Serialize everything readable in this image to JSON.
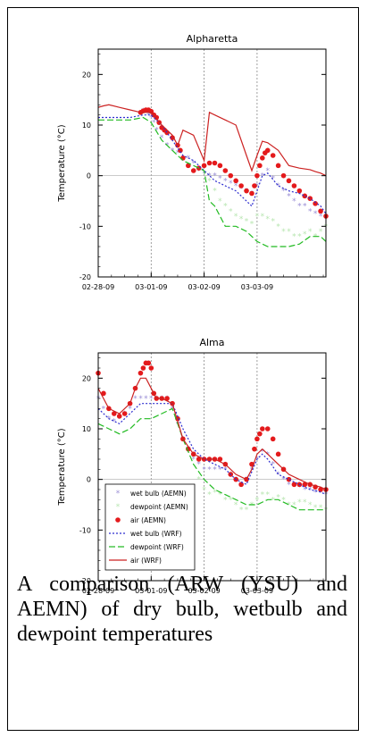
{
  "caption": "A comparison (ARW (YSU) and AEMN) of dry bulb, wetbulb and dewpoint temperatures",
  "chart_data": [
    {
      "type": "line",
      "title": "Alpharetta",
      "xlabel": "",
      "ylabel": "Temperature (°C)",
      "xlim": [
        0,
        4.3
      ],
      "ylim": [
        -20,
        25
      ],
      "x_ticks": [
        0,
        1,
        2,
        3
      ],
      "x_tick_labels": [
        "02-28-09",
        "03-01-09",
        "03-02-09",
        "03-03-09"
      ],
      "y_ticks": [
        -20,
        -10,
        0,
        10,
        20
      ],
      "y_tick_labels": [
        "-20",
        "-10",
        "0",
        "10",
        "20"
      ],
      "series": [
        {
          "name": "wet bulb (AEMN)",
          "kind": "markers",
          "color": "#9b8fd6",
          "x": [
            0.85,
            0.9,
            0.95,
            1.0,
            1.05,
            1.1,
            1.2,
            1.3,
            1.4,
            1.5,
            1.6,
            1.7,
            1.8,
            1.9,
            2.0,
            2.1,
            2.2,
            2.3,
            2.4,
            2.5,
            2.6,
            2.7,
            2.8,
            2.9,
            3.0,
            3.1,
            3.2,
            3.3,
            3.4,
            3.5,
            3.6,
            3.7,
            3.8,
            3.9,
            4.0,
            4.1,
            4.2,
            4.3
          ],
          "y": [
            12.8,
            12.5,
            12,
            11.5,
            10.5,
            9,
            7.5,
            6,
            5,
            4.5,
            3,
            3.5,
            2.5,
            1,
            0.5,
            0,
            0,
            -0.5,
            -1,
            -1.5,
            -2,
            -2.5,
            -3,
            -3.5,
            -2,
            0,
            1,
            -0.5,
            -2,
            -3,
            -4,
            -5,
            -6,
            -6,
            -7,
            -7.5,
            -8,
            -8
          ]
        },
        {
          "name": "dewpoint (AEMN)",
          "kind": "markers",
          "color": "#b9e6b2",
          "x": [
            2.1,
            2.2,
            2.3,
            2.4,
            2.5,
            2.6,
            2.7,
            2.8,
            2.9,
            3.0,
            3.1,
            3.2,
            3.3,
            3.4,
            3.5,
            3.6,
            3.7,
            3.8,
            3.9,
            4.0,
            4.1,
            4.2,
            4.3
          ],
          "y": [
            -1,
            -3,
            -5,
            -6,
            -7,
            -8,
            -8.5,
            -9,
            -9.5,
            -8,
            -8,
            -8.5,
            -9,
            -10,
            -11,
            -11,
            -12,
            -12,
            -11.5,
            -11,
            -12,
            -11,
            -10
          ]
        },
        {
          "name": "air (AEMN)",
          "kind": "markers",
          "color": "#e41a1c",
          "x": [
            0.8,
            0.85,
            0.9,
            0.95,
            1.0,
            1.05,
            1.1,
            1.15,
            1.2,
            1.25,
            1.3,
            1.4,
            1.5,
            1.55,
            1.6,
            1.7,
            1.8,
            1.9,
            2.0,
            2.1,
            2.2,
            2.3,
            2.4,
            2.5,
            2.6,
            2.7,
            2.8,
            2.9,
            2.95,
            3.0,
            3.05,
            3.1,
            3.15,
            3.2,
            3.3,
            3.4,
            3.5,
            3.6,
            3.7,
            3.8,
            3.9,
            4.0,
            4.1,
            4.2,
            4.3
          ],
          "y": [
            12.5,
            12.8,
            13,
            13,
            12.7,
            12,
            11.5,
            10.5,
            9.5,
            9,
            8.5,
            7.5,
            6,
            5,
            3.5,
            2,
            1,
            1.5,
            2,
            2.5,
            2.5,
            2,
            1,
            0,
            -1,
            -2,
            -3,
            -3.5,
            -2,
            0,
            2,
            3.5,
            4.5,
            5,
            4,
            2,
            0,
            -1,
            -2,
            -3,
            -4,
            -4.5,
            -5.5,
            -7,
            -8
          ]
        },
        {
          "name": "wet bulb (WRF)",
          "kind": "line",
          "dash": "dotted",
          "color": "#2d2dcf",
          "x": [
            0,
            0.3,
            0.6,
            0.85,
            1.0,
            1.2,
            1.4,
            1.6,
            1.8,
            2.0,
            2.2,
            2.4,
            2.6,
            2.8,
            2.9,
            3.0,
            3.1,
            3.2,
            3.4,
            3.6,
            3.8,
            4.0,
            4.2,
            4.3
          ],
          "y": [
            11.5,
            11.5,
            11.5,
            12,
            12,
            10,
            7,
            4,
            3,
            1,
            -1,
            -2,
            -3,
            -5,
            -6,
            -3,
            0,
            0.5,
            -2,
            -3,
            -3.5,
            -4.5,
            -6,
            -7.5
          ]
        },
        {
          "name": "dewpoint (WRF)",
          "kind": "line",
          "dash": "dashed",
          "color": "#22bb22",
          "x": [
            0,
            0.3,
            0.6,
            0.85,
            1.0,
            1.2,
            1.4,
            1.6,
            1.8,
            2.0,
            2.1,
            2.2,
            2.4,
            2.6,
            2.8,
            3.0,
            3.2,
            3.4,
            3.6,
            3.8,
            4.0,
            4.2,
            4.3
          ],
          "y": [
            11,
            11,
            11,
            11.5,
            10.5,
            7,
            5,
            3,
            2,
            1,
            -5,
            -6,
            -10,
            -10,
            -11,
            -13,
            -14,
            -14,
            -14,
            -13.5,
            -12,
            -12,
            -13
          ]
        },
        {
          "name": "air (WRF)",
          "kind": "line",
          "dash": "solid",
          "color": "#cc2222",
          "x": [
            0,
            0.1,
            0.2,
            0.4,
            0.6,
            0.8,
            1.0,
            1.2,
            1.4,
            1.5,
            1.6,
            1.8,
            2.0,
            2.1,
            2.2,
            2.4,
            2.6,
            2.8,
            2.9,
            3.0,
            3.1,
            3.2,
            3.4,
            3.6,
            3.8,
            4.0,
            4.1,
            4.2,
            4.3
          ],
          "y": [
            13.5,
            13.8,
            14,
            13.5,
            13,
            12.5,
            12.5,
            10,
            8,
            6,
            9,
            8,
            3,
            12.5,
            12,
            11,
            10,
            4,
            1,
            4,
            6.8,
            6.5,
            5,
            2,
            1.5,
            1.2,
            0.8,
            0.5,
            0
          ]
        }
      ]
    },
    {
      "type": "line",
      "title": "Alma",
      "xlabel": "",
      "ylabel": "Temperature (°C)",
      "xlim": [
        0,
        4.3
      ],
      "ylim": [
        -20,
        25
      ],
      "x_ticks": [
        0,
        1,
        2,
        3
      ],
      "x_tick_labels": [
        "02-28-09",
        "03-01-09",
        "03-02-09",
        "03-03-09"
      ],
      "y_ticks": [
        -20,
        -10,
        0,
        10,
        20
      ],
      "y_tick_labels": [
        "-20",
        "-10",
        "0",
        "10",
        "20"
      ],
      "legend": "bottom-left",
      "series": [
        {
          "name": "wet bulb (AEMN)",
          "kind": "markers",
          "color": "#9b8fd6",
          "x": [
            0,
            0.1,
            0.2,
            0.3,
            0.4,
            0.5,
            0.6,
            0.7,
            0.8,
            0.9,
            1.0,
            1.1,
            1.2,
            1.3,
            1.4,
            1.5,
            1.6,
            1.7,
            1.8,
            1.9,
            2.0,
            2.1,
            2.2,
            2.3,
            2.4,
            2.5,
            2.6,
            2.7,
            2.8,
            2.9,
            3.0,
            3.1,
            3.2,
            3.3,
            3.4,
            3.5,
            3.6,
            3.7,
            3.8,
            3.9,
            4.0,
            4.1,
            4.2,
            4.3
          ],
          "y": [
            16,
            14,
            12,
            11.5,
            12,
            13,
            14,
            16,
            16,
            16,
            16,
            16,
            16,
            16,
            14,
            11,
            8,
            6,
            4,
            3,
            2,
            2,
            2,
            2,
            2,
            1,
            0,
            -1,
            0,
            2,
            4,
            5.5,
            5,
            3,
            1,
            0,
            -1,
            -1,
            -1.5,
            -2,
            -2,
            -2.5,
            -2.5,
            -3
          ]
        },
        {
          "name": "dewpoint (AEMN)",
          "kind": "markers",
          "color": "#b9e6b2",
          "x": [
            1.9,
            2.0,
            2.1,
            2.2,
            2.3,
            2.4,
            2.5,
            2.6,
            2.7,
            2.8,
            2.9,
            3.0,
            3.1,
            3.2,
            3.3,
            3.4,
            3.5,
            3.6,
            3.7,
            3.8,
            3.9,
            4.0,
            4.1,
            4.2,
            4.3
          ],
          "y": [
            0,
            -2,
            -3,
            -2.5,
            -3,
            -4,
            -4,
            -5,
            -6,
            -6,
            -5,
            -4,
            -3,
            -3,
            -4,
            -3.5,
            -4,
            -5,
            -5,
            -4.5,
            -4.5,
            -5,
            -5.5,
            -5.5,
            -6
          ]
        },
        {
          "name": "air (AEMN)",
          "kind": "markers",
          "color": "#e41a1c",
          "x": [
            0,
            0.1,
            0.2,
            0.3,
            0.4,
            0.5,
            0.6,
            0.7,
            0.8,
            0.85,
            0.9,
            0.95,
            1.0,
            1.05,
            1.1,
            1.2,
            1.3,
            1.4,
            1.5,
            1.6,
            1.7,
            1.8,
            1.9,
            2.0,
            2.1,
            2.2,
            2.3,
            2.4,
            2.5,
            2.6,
            2.7,
            2.8,
            2.9,
            2.95,
            3.0,
            3.05,
            3.1,
            3.2,
            3.3,
            3.4,
            3.5,
            3.6,
            3.7,
            3.8,
            3.9,
            4.0,
            4.1,
            4.2,
            4.3
          ],
          "y": [
            21,
            17,
            14,
            13,
            12.5,
            13,
            15,
            18,
            21,
            22,
            23,
            23,
            22,
            17,
            16,
            16,
            16,
            15,
            12,
            8,
            6,
            5,
            4,
            4,
            4,
            4,
            4,
            3,
            1,
            0,
            -1,
            0,
            3,
            6,
            8,
            9,
            10,
            10,
            8,
            5,
            2,
            0,
            -1,
            -1,
            -1,
            -1,
            -1.5,
            -2,
            -2
          ]
        },
        {
          "name": "wet bulb (WRF)",
          "kind": "line",
          "dash": "dotted",
          "color": "#2d2dcf",
          "x": [
            0,
            0.2,
            0.4,
            0.6,
            0.8,
            1.0,
            1.2,
            1.4,
            1.6,
            1.8,
            2.0,
            2.2,
            2.4,
            2.6,
            2.8,
            3.0,
            3.1,
            3.2,
            3.4,
            3.6,
            3.8,
            4.0,
            4.2,
            4.3
          ],
          "y": [
            14,
            12,
            11,
            13,
            15,
            15,
            15,
            15,
            10,
            6,
            4,
            3,
            2,
            0,
            -1,
            4,
            5,
            4,
            1,
            0,
            -1,
            -2,
            -2.5,
            -3
          ]
        },
        {
          "name": "dewpoint (WRF)",
          "kind": "line",
          "dash": "dashed",
          "color": "#22bb22",
          "x": [
            0,
            0.2,
            0.4,
            0.6,
            0.8,
            1.0,
            1.2,
            1.4,
            1.6,
            1.8,
            2.0,
            2.2,
            2.4,
            2.6,
            2.8,
            3.0,
            3.2,
            3.4,
            3.6,
            3.8,
            4.0,
            4.2,
            4.3
          ],
          "y": [
            11,
            10,
            9,
            10,
            12,
            12,
            13,
            14,
            8,
            3,
            0,
            -2,
            -3,
            -4,
            -5,
            -5,
            -4,
            -4,
            -5,
            -6,
            -6,
            -6,
            -6
          ]
        },
        {
          "name": "air (WRF)",
          "kind": "line",
          "dash": "solid",
          "color": "#cc2222",
          "x": [
            0,
            0.1,
            0.2,
            0.4,
            0.6,
            0.7,
            0.8,
            0.9,
            1.0,
            1.1,
            1.2,
            1.4,
            1.6,
            1.8,
            2.0,
            2.2,
            2.4,
            2.6,
            2.8,
            2.9,
            3.0,
            3.1,
            3.2,
            3.4,
            3.6,
            3.8,
            4.0,
            4.2,
            4.3
          ],
          "y": [
            18,
            16,
            14,
            13,
            15,
            18,
            20,
            20,
            18,
            16,
            16,
            15,
            8,
            5,
            4,
            4,
            3,
            1,
            0,
            2,
            5,
            6,
            5,
            3,
            1,
            0,
            -1,
            -1.5,
            -2
          ]
        }
      ]
    }
  ]
}
